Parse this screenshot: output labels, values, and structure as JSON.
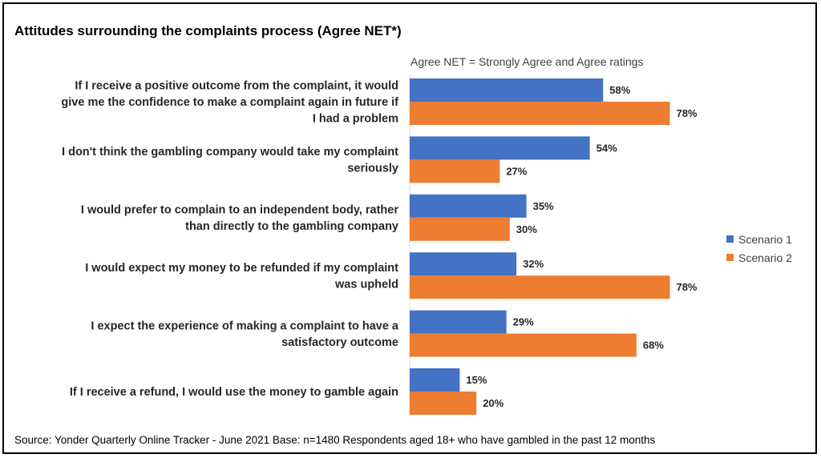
{
  "title": "Attitudes surrounding the complaints process (Agree NET*)",
  "subtitle": "Agree NET = Strongly Agree and Agree ratings",
  "source": "Source: Yonder Quarterly Online Tracker - June 2021 Base: n=1480 Respondents aged 18+ who have gambled in the past 12 months",
  "chart_data": {
    "type": "bar",
    "orientation": "horizontal",
    "categories": [
      [
        "If I receive a positive outcome from the complaint, it would",
        "give me the confidence to make a complaint again in future if",
        "I had a problem"
      ],
      [
        "I don't think the gambling company would take my complaint",
        "seriously"
      ],
      [
        "I would prefer to complain to an independent body, rather",
        "than directly to the gambling company"
      ],
      [
        "I would expect my money to be refunded if my complaint",
        "was upheld"
      ],
      [
        "I expect the experience of making a complaint to have a",
        "satisfactory outcome"
      ],
      [
        "If I receive a refund, I would use the money to gamble again"
      ]
    ],
    "series": [
      {
        "name": "Scenario 1",
        "color": "#4472C4",
        "values": [
          58,
          54,
          35,
          32,
          29,
          15
        ],
        "labels": [
          "58%",
          "54%",
          "35%",
          "32%",
          "29%",
          "15%"
        ]
      },
      {
        "name": "Scenario 2",
        "color": "#ED7D31",
        "values": [
          78,
          27,
          30,
          78,
          68,
          20
        ],
        "labels": [
          "78%",
          "27%",
          "30%",
          "78%",
          "68%",
          "20%"
        ]
      }
    ],
    "xlim": [
      0,
      100
    ],
    "grid": false,
    "legend_position": "right"
  }
}
